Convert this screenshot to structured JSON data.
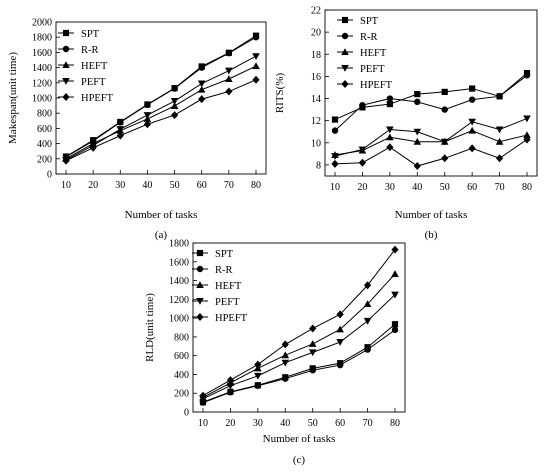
{
  "chart_data": [
    {
      "type": "line",
      "panel_label": "(a)",
      "xlabel": "Number of tasks",
      "ylabel": "Makespan(unit time)",
      "x": [
        10,
        20,
        30,
        40,
        50,
        60,
        70,
        80
      ],
      "ylim": [
        0,
        2000
      ],
      "yticks": [
        0,
        200,
        400,
        600,
        800,
        1000,
        1200,
        1400,
        1600,
        1800,
        2000
      ],
      "legend_position": "top-left",
      "series": [
        {
          "name": "SPT",
          "marker": "square",
          "values": [
            230,
            445,
            685,
            915,
            1130,
            1415,
            1595,
            1820
          ]
        },
        {
          "name": "R-R",
          "marker": "circle",
          "values": [
            225,
            435,
            680,
            910,
            1125,
            1400,
            1590,
            1800
          ]
        },
        {
          "name": "HEFT",
          "marker": "triangle-up",
          "values": [
            200,
            400,
            570,
            725,
            895,
            1110,
            1250,
            1420
          ]
        },
        {
          "name": "PEFT",
          "marker": "triangle-down",
          "values": [
            185,
            375,
            590,
            775,
            960,
            1190,
            1360,
            1550
          ]
        },
        {
          "name": "HPEFT",
          "marker": "diamond",
          "values": [
            175,
            345,
            505,
            655,
            775,
            985,
            1085,
            1240
          ]
        }
      ]
    },
    {
      "type": "line",
      "panel_label": "(b)",
      "xlabel": "Number of tasks",
      "ylabel": "RITS(%)",
      "x": [
        10,
        20,
        30,
        40,
        50,
        60,
        70,
        80
      ],
      "ylim": [
        7,
        22
      ],
      "yticks": [
        8,
        10,
        12,
        14,
        16,
        18,
        20,
        22
      ],
      "legend_position": "top-right",
      "series": [
        {
          "name": "SPT",
          "marker": "square",
          "values": [
            12.1,
            13.2,
            13.5,
            14.4,
            14.6,
            14.9,
            14.2,
            16.3
          ]
        },
        {
          "name": "R-R",
          "marker": "circle",
          "values": [
            11.1,
            13.4,
            14.0,
            13.7,
            13.0,
            13.9,
            14.2,
            16.1
          ]
        },
        {
          "name": "HEFT",
          "marker": "triangle-up",
          "values": [
            8.9,
            9.3,
            10.5,
            10.1,
            10.1,
            11.1,
            10.1,
            10.7
          ]
        },
        {
          "name": "PEFT",
          "marker": "triangle-down",
          "values": [
            8.8,
            9.4,
            11.2,
            11.0,
            10.1,
            11.9,
            11.2,
            12.2
          ]
        },
        {
          "name": "HPEFT",
          "marker": "diamond",
          "values": [
            8.1,
            8.2,
            9.6,
            7.9,
            8.6,
            9.5,
            8.6,
            10.3
          ]
        }
      ]
    },
    {
      "type": "line",
      "panel_label": "(c)",
      "xlabel": "Number of tasks",
      "ylabel": "RLD(unit time)",
      "x": [
        10,
        20,
        30,
        40,
        50,
        60,
        70,
        80
      ],
      "ylim": [
        0,
        1800
      ],
      "yticks": [
        0,
        200,
        400,
        600,
        800,
        1000,
        1200,
        1400,
        1600,
        1800
      ],
      "legend_position": "top-left",
      "series": [
        {
          "name": "SPT",
          "marker": "square",
          "values": [
            105,
            215,
            285,
            370,
            465,
            520,
            690,
            935
          ]
        },
        {
          "name": "R-R",
          "marker": "circle",
          "values": [
            100,
            210,
            280,
            355,
            445,
            500,
            665,
            875
          ]
        },
        {
          "name": "HEFT",
          "marker": "triangle-up",
          "values": [
            155,
            310,
            465,
            605,
            725,
            880,
            1150,
            1470
          ]
        },
        {
          "name": "PEFT",
          "marker": "triangle-down",
          "values": [
            140,
            280,
            385,
            525,
            635,
            745,
            970,
            1250
          ]
        },
        {
          "name": "HPEFT",
          "marker": "diamond",
          "values": [
            175,
            340,
            505,
            720,
            890,
            1040,
            1350,
            1730
          ]
        }
      ]
    }
  ]
}
